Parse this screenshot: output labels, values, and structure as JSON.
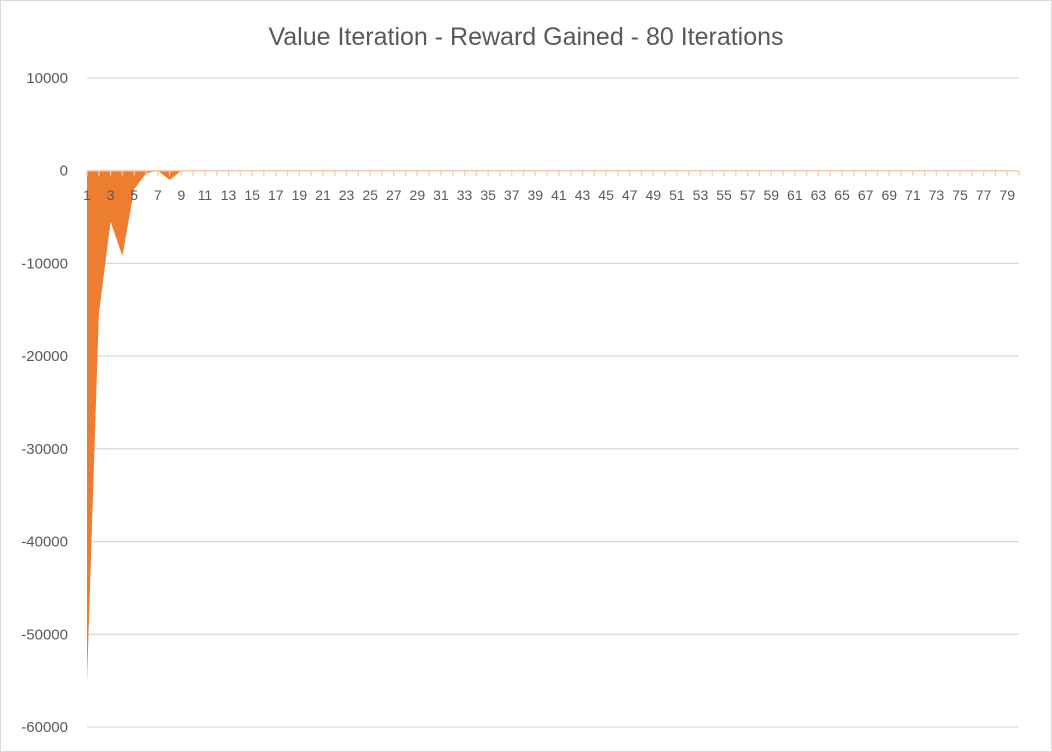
{
  "chart_data": {
    "type": "area",
    "title": "Value Iteration - Reward Gained - 80 Iterations",
    "xlabel": "",
    "ylabel": "",
    "x": [
      1,
      2,
      3,
      4,
      5,
      6,
      7,
      8,
      9,
      10,
      11,
      12,
      13,
      14,
      15,
      16,
      17,
      18,
      19,
      20,
      21,
      22,
      23,
      24,
      25,
      26,
      27,
      28,
      29,
      30,
      31,
      32,
      33,
      34,
      35,
      36,
      37,
      38,
      39,
      40,
      41,
      42,
      43,
      44,
      45,
      46,
      47,
      48,
      49,
      50,
      51,
      52,
      53,
      54,
      55,
      56,
      57,
      58,
      59,
      60,
      61,
      62,
      63,
      64,
      65,
      66,
      67,
      68,
      69,
      70,
      71,
      72,
      73,
      74,
      75,
      76,
      77,
      78,
      79,
      80
    ],
    "x_tick_labels": [
      "1",
      "3",
      "5",
      "7",
      "9",
      "11",
      "13",
      "15",
      "17",
      "19",
      "21",
      "23",
      "25",
      "27",
      "29",
      "31",
      "33",
      "35",
      "37",
      "39",
      "41",
      "43",
      "45",
      "47",
      "49",
      "51",
      "53",
      "55",
      "57",
      "59",
      "61",
      "63",
      "65",
      "67",
      "69",
      "71",
      "73",
      "75",
      "77",
      "79"
    ],
    "ylim": [
      -60000,
      10000
    ],
    "y_ticks": [
      10000,
      0,
      -10000,
      -20000,
      -30000,
      -40000,
      -50000,
      -60000
    ],
    "y_tick_labels": [
      "10000",
      "0",
      "-10000",
      "-20000",
      "-30000",
      "-40000",
      "-50000",
      "-60000"
    ],
    "grid": true,
    "legend": "none",
    "series": [
      {
        "values": [
          -55000,
          -15500,
          -5500,
          -9200,
          -2000,
          -300,
          0,
          -1000,
          0,
          0,
          0,
          0,
          0,
          0,
          0,
          0,
          0,
          0,
          0,
          0,
          0,
          0,
          0,
          0,
          0,
          0,
          0,
          0,
          0,
          0,
          0,
          0,
          0,
          0,
          0,
          0,
          0,
          0,
          0,
          0,
          0,
          0,
          0,
          0,
          0,
          0,
          0,
          0,
          0,
          0,
          0,
          0,
          0,
          0,
          0,
          0,
          0,
          0,
          0,
          0,
          0,
          0,
          0,
          0,
          0,
          0,
          0,
          0,
          0,
          0,
          0,
          0,
          0,
          0,
          0,
          0,
          0,
          0,
          0,
          0
        ]
      }
    ],
    "colors": {
      "series": "#ed7d31",
      "grid": "#d9d9d9",
      "baseline": "#f8cbad",
      "text": "#595959"
    }
  }
}
